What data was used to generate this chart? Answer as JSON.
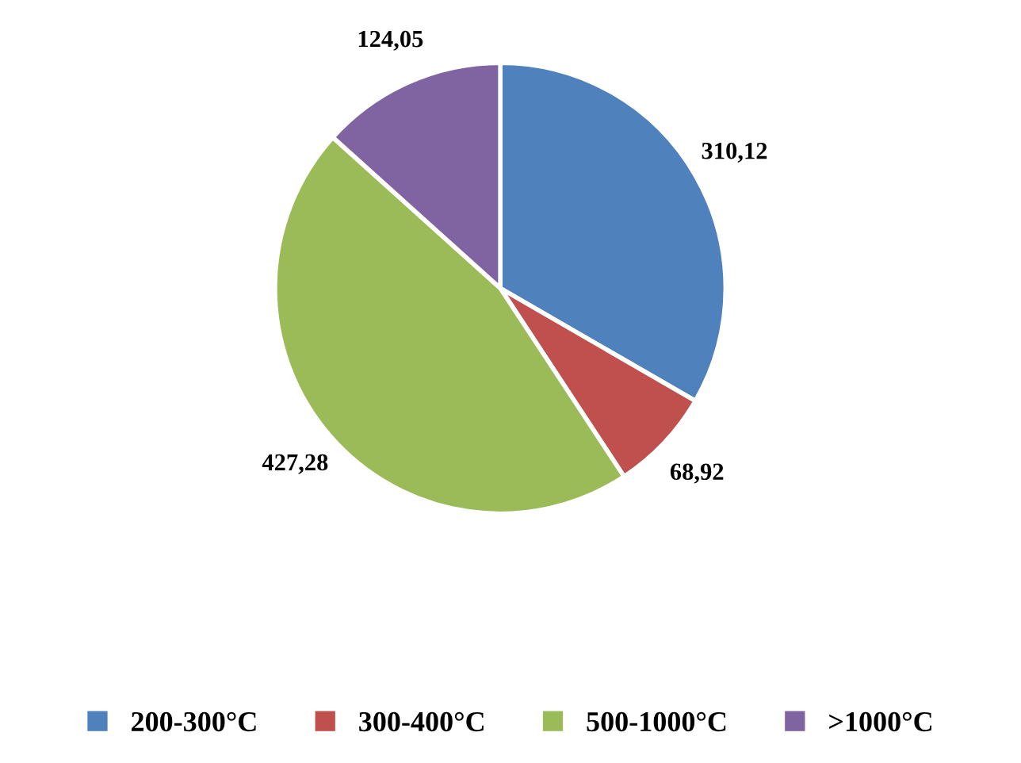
{
  "chart_data": {
    "type": "pie",
    "categories": [
      "200-300°C",
      "300-400°C",
      "500-1000°C",
      ">1000°C"
    ],
    "values": [
      310.12,
      68.92,
      427.28,
      124.05
    ],
    "value_labels": [
      "310,12",
      "68,92",
      "427,28",
      "124,05"
    ],
    "colors": [
      "#4f81bd",
      "#c0504d",
      "#9bbb59",
      "#8064a2"
    ],
    "legend": "bottom"
  }
}
